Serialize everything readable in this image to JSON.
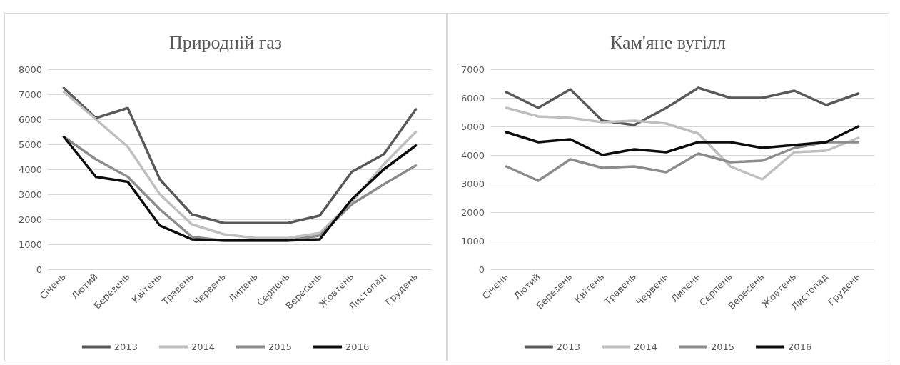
{
  "chart_data": [
    {
      "type": "line",
      "title": "Природній газ",
      "categories": [
        "Січень",
        "Лютий",
        "Березень",
        "Квітень",
        "Травень",
        "Червень",
        "Липень",
        "Серпень",
        "Вересень",
        "Жовтень",
        "Листопад",
        "Грудень"
      ],
      "series": [
        {
          "name": "2013",
          "color": "#595959",
          "values": [
            7250,
            6050,
            6450,
            3600,
            2200,
            1850,
            1850,
            1850,
            2150,
            3900,
            4600,
            6400
          ]
        },
        {
          "name": "2014",
          "color": "#bfbfbf",
          "values": [
            7100,
            6000,
            4900,
            3000,
            1800,
            1400,
            1250,
            1250,
            1450,
            2700,
            4200,
            5500
          ]
        },
        {
          "name": "2015",
          "color": "#8c8c8c",
          "values": [
            5300,
            4400,
            3700,
            2400,
            1300,
            1150,
            1150,
            1150,
            1350,
            2600,
            3400,
            4150
          ]
        },
        {
          "name": "2016",
          "color": "#0d0d0d",
          "values": [
            5300,
            3700,
            3500,
            1750,
            1200,
            1150,
            1150,
            1150,
            1200,
            2800,
            4000,
            4950
          ]
        }
      ],
      "ylim": [
        0,
        8000
      ],
      "yticks": [
        0,
        1000,
        2000,
        3000,
        4000,
        5000,
        6000,
        7000,
        8000
      ],
      "grid": "y",
      "legend": "bottom",
      "marker": "none",
      "line_style": "solid"
    },
    {
      "type": "line",
      "title": "Кам'яне вугілл",
      "categories": [
        "Січень",
        "Лютий",
        "Березень",
        "Квітень",
        "Травень",
        "Червень",
        "Липень",
        "Серпень",
        "Вересень",
        "Жовтень",
        "Листопад",
        "Грудень"
      ],
      "series": [
        {
          "name": "2013",
          "color": "#595959",
          "values": [
            6200,
            5650,
            6300,
            5200,
            5050,
            5650,
            6350,
            6000,
            6000,
            6250,
            5750,
            6150
          ]
        },
        {
          "name": "2014",
          "color": "#bfbfbf",
          "values": [
            5650,
            5350,
            5300,
            5150,
            5200,
            5100,
            4750,
            3600,
            3150,
            4100,
            4150,
            4600
          ]
        },
        {
          "name": "2015",
          "color": "#8c8c8c",
          "values": [
            3600,
            3100,
            3850,
            3550,
            3600,
            3400,
            4050,
            3750,
            3800,
            4250,
            4450,
            4450
          ]
        },
        {
          "name": "2016",
          "color": "#0d0d0d",
          "values": [
            4800,
            4450,
            4550,
            4000,
            4200,
            4100,
            4450,
            4450,
            4250,
            4350,
            4450,
            5000
          ]
        }
      ],
      "ylim": [
        0,
        7000
      ],
      "yticks": [
        0,
        1000,
        2000,
        3000,
        4000,
        5000,
        6000,
        7000
      ],
      "grid": "y",
      "legend": "bottom",
      "marker": "none",
      "line_style": "solid"
    }
  ]
}
